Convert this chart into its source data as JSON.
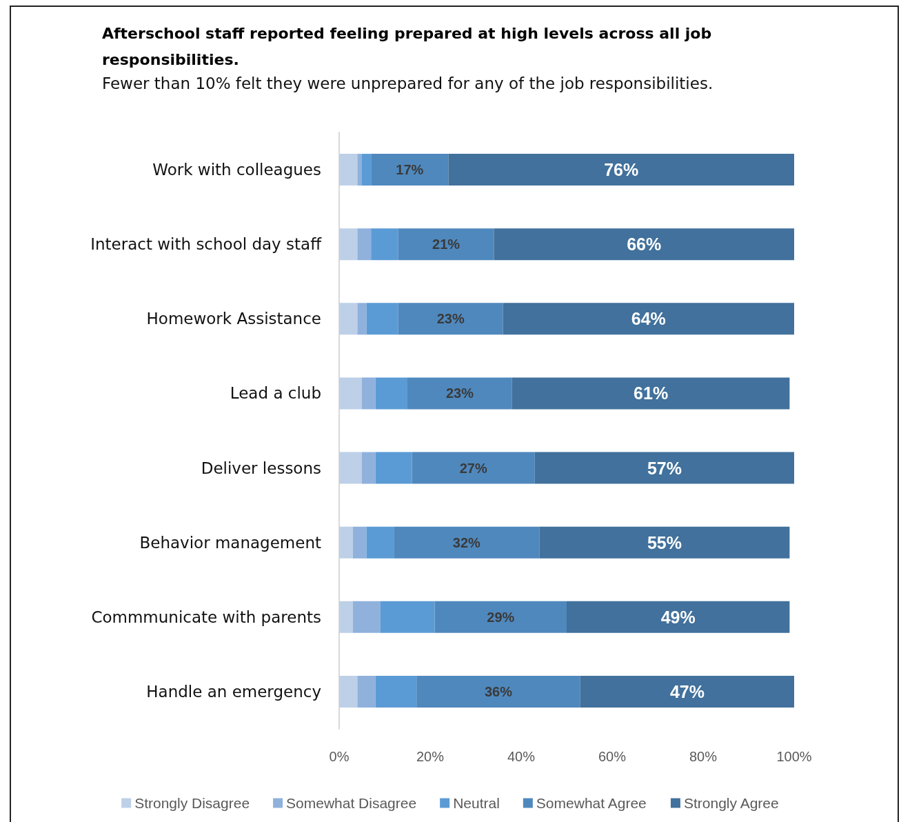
{
  "chart_data": {
    "type": "bar",
    "orientation": "horizontal",
    "stacked": true,
    "title": "Afterschool staff reported feeling prepared at high levels across all job responsibilities.",
    "subtitle": "Fewer than 10%  felt they were unprepared for any of the job responsibilities.",
    "categories": [
      "Work with colleagues",
      "Interact with school day staff",
      "Homework Assistance",
      "Lead a club",
      "Deliver lessons",
      "Behavior management",
      "Commmunicate with parents",
      "Handle an emergency"
    ],
    "series": [
      {
        "name": "Strongly Disagree",
        "color": "#bdd0e8",
        "values": [
          4,
          4,
          4,
          5,
          5,
          3,
          3,
          4
        ]
      },
      {
        "name": "Somewhat Disagree",
        "color": "#8fb1dc",
        "values": [
          1,
          3,
          2,
          3,
          3,
          3,
          6,
          4
        ]
      },
      {
        "name": "Neutral",
        "color": "#5b9bd5",
        "values": [
          2,
          6,
          7,
          7,
          8,
          6,
          12,
          9
        ]
      },
      {
        "name": "Somewhat Agree",
        "color": "#4f88bd",
        "values": [
          17,
          21,
          23,
          23,
          27,
          32,
          29,
          36
        ],
        "value_labels": [
          "17%",
          "21%",
          "23%",
          "23%",
          "27%",
          "32%",
          "29%",
          "36%"
        ]
      },
      {
        "name": "Strongly Agree",
        "color": "#41719c",
        "values": [
          76,
          66,
          64,
          61,
          57,
          55,
          49,
          47
        ],
        "value_labels": [
          "76%",
          "66%",
          "64%",
          "61%",
          "57%",
          "55%",
          "49%",
          "47%"
        ]
      }
    ],
    "xlim": [
      0,
      100
    ],
    "xticks": [
      {
        "value": 0,
        "label": "0%"
      },
      {
        "value": 20,
        "label": "20%"
      },
      {
        "value": 40,
        "label": "40%"
      },
      {
        "value": 60,
        "label": "60%"
      },
      {
        "value": 80,
        "label": "80%"
      },
      {
        "value": 100,
        "label": "100%"
      }
    ],
    "grid": false,
    "legend": "bottom"
  }
}
